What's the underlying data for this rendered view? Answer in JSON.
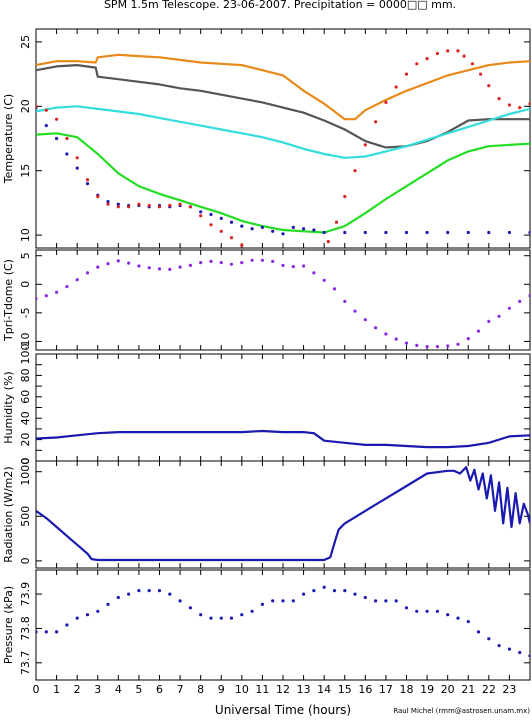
{
  "title": "SPM 1.5m Telescope. 23-06-2007. Precipitation = 0000□□ mm.",
  "xlabel": "Universal Time (hours)",
  "credit": "Raul Michel (rmm@astrosen.unam.mx)",
  "x_tick_labels": [
    "0",
    "1",
    "2",
    "3",
    "4",
    "5",
    "6",
    "7",
    "8",
    "9",
    "10",
    "11",
    "12",
    "13",
    "14",
    "15",
    "16",
    "17",
    "18",
    "19",
    "20",
    "21",
    "22",
    "23"
  ],
  "colors": {
    "orange": "#e8891a",
    "darkgray": "#555555",
    "cyan": "#33dddd",
    "green": "#22dd22",
    "red": "#dd2222",
    "blue": "#1a1ab0",
    "purple": "#8a2be2"
  },
  "chart_data": [
    {
      "type": "scatter",
      "name": "temperature",
      "ylabel": "Temperature (C)",
      "xlim": [
        0,
        24
      ],
      "ylim": [
        9,
        26
      ],
      "y_ticks": [
        10,
        15,
        20,
        25
      ],
      "y_tick_labels": [
        "10",
        "15",
        "20",
        "25"
      ],
      "series": [
        {
          "color": "orange",
          "style": "line",
          "x": [
            0,
            1,
            2,
            2.9,
            3.0,
            4,
            5,
            6,
            7,
            8,
            9,
            10,
            11,
            12,
            13,
            14,
            15,
            15.5,
            16,
            17,
            18,
            19,
            20,
            21,
            22,
            23,
            24
          ],
          "y": [
            23.2,
            23.5,
            23.5,
            23.4,
            23.8,
            24.0,
            23.9,
            23.8,
            23.6,
            23.4,
            23.3,
            23.2,
            22.8,
            22.4,
            21.2,
            20.2,
            19.0,
            19.0,
            19.7,
            20.5,
            21.2,
            21.8,
            22.4,
            22.8,
            23.2,
            23.4,
            23.5
          ]
        },
        {
          "color": "darkgray",
          "style": "line",
          "x": [
            0,
            1,
            2,
            2.9,
            3.0,
            4,
            5,
            6,
            7,
            8,
            9,
            10,
            11,
            12,
            13,
            14,
            15,
            16,
            17,
            18,
            19,
            20,
            21,
            22,
            23,
            24
          ],
          "y": [
            22.8,
            23.1,
            23.2,
            23.0,
            22.3,
            22.1,
            21.9,
            21.7,
            21.4,
            21.2,
            20.9,
            20.6,
            20.3,
            19.9,
            19.5,
            18.9,
            18.2,
            17.3,
            16.8,
            16.9,
            17.3,
            18.0,
            18.9,
            19.0,
            19.0,
            19.0
          ]
        },
        {
          "color": "cyan",
          "style": "line",
          "x": [
            0,
            1,
            2,
            3,
            4,
            5,
            6,
            7,
            8,
            9,
            10,
            11,
            12,
            13,
            14,
            15,
            16,
            17,
            18,
            19,
            20,
            21,
            22,
            23,
            24
          ],
          "y": [
            19.6,
            19.9,
            20.0,
            19.8,
            19.6,
            19.4,
            19.1,
            18.8,
            18.5,
            18.2,
            17.9,
            17.6,
            17.2,
            16.7,
            16.3,
            16.0,
            16.1,
            16.5,
            16.9,
            17.4,
            17.9,
            18.4,
            18.9,
            19.4,
            19.8
          ]
        },
        {
          "color": "green",
          "style": "line",
          "x": [
            0,
            1,
            2,
            3,
            4,
            5,
            6,
            7,
            8,
            9,
            10,
            11,
            12,
            13,
            14,
            15,
            16,
            17,
            18,
            19,
            20,
            21,
            22,
            23,
            24
          ],
          "y": [
            17.8,
            17.9,
            17.6,
            16.3,
            14.8,
            13.8,
            13.2,
            12.7,
            12.2,
            11.7,
            11.1,
            10.7,
            10.4,
            10.3,
            10.2,
            10.7,
            11.7,
            12.8,
            13.8,
            14.8,
            15.8,
            16.5,
            16.9,
            17.0,
            17.1
          ]
        },
        {
          "color": "blue",
          "style": "scatter",
          "x": [
            0,
            0.5,
            1,
            1.5,
            2,
            2.5,
            3,
            3.5,
            4,
            4.5,
            5,
            5.5,
            6,
            6.5,
            7,
            7.5,
            8,
            8.5,
            9,
            9.5,
            10,
            10.5,
            11,
            11.5,
            12,
            12.5,
            13,
            13.5,
            14,
            15,
            16,
            17,
            18,
            19,
            20,
            21,
            22,
            23,
            24
          ],
          "y": [
            19.9,
            18.5,
            17.5,
            16.3,
            15.2,
            14.0,
            13.1,
            12.6,
            12.4,
            12.3,
            12.3,
            12.2,
            12.3,
            12.2,
            12.3,
            12.2,
            11.8,
            11.6,
            11.3,
            11.0,
            10.7,
            10.5,
            10.6,
            10.3,
            10.1,
            10.6,
            10.5,
            10.4,
            10.2,
            10.2,
            10.2,
            10.2,
            10.2,
            10.2,
            10.2,
            10.2,
            10.2,
            10.2,
            10.2
          ]
        },
        {
          "color": "red",
          "style": "scatter",
          "x": [
            0,
            0.5,
            1,
            1.5,
            2,
            2.5,
            3,
            3.5,
            4,
            4.5,
            5,
            5.5,
            6,
            6.5,
            7,
            7.5,
            8,
            8.5,
            9,
            9.5,
            10,
            10.5,
            11,
            11.5,
            12,
            13,
            13.8,
            14.2,
            14.6,
            15,
            15.5,
            16,
            16.5,
            17,
            17.5,
            18,
            18.5,
            19,
            19.5,
            20,
            20.5,
            20.8,
            21.2,
            21.6,
            22,
            22.5,
            23,
            23.5,
            24
          ],
          "y": [
            20.0,
            19.7,
            19.0,
            17.5,
            16.0,
            14.3,
            13.0,
            12.4,
            12.2,
            12.2,
            12.4,
            12.3,
            12.2,
            12.3,
            12.4,
            12.2,
            11.5,
            10.8,
            10.3,
            9.8,
            9.2,
            8.8,
            8.6,
            8.5,
            8.4,
            8.4,
            8.5,
            9.5,
            11.0,
            13.0,
            15.0,
            17.0,
            18.8,
            20.3,
            21.5,
            22.5,
            23.3,
            23.7,
            24.1,
            24.3,
            24.3,
            23.9,
            23.3,
            22.5,
            21.6,
            20.6,
            20.1,
            19.9,
            20.2
          ]
        }
      ]
    },
    {
      "type": "scatter",
      "name": "tpri-tdome",
      "ylabel": "Tpri-Tdome (C)",
      "xlim": [
        0,
        24
      ],
      "ylim": [
        -11.5,
        6
      ],
      "y_ticks": [
        -10,
        -5,
        0,
        5
      ],
      "y_tick_labels": [
        "-10",
        "-5",
        "0",
        "5"
      ],
      "series": [
        {
          "color": "purple",
          "style": "scatter",
          "x": [
            0,
            0.5,
            1,
            1.5,
            2,
            2.5,
            3,
            3.5,
            4,
            4.5,
            5,
            5.5,
            6,
            6.5,
            7,
            7.5,
            8,
            8.5,
            9,
            9.5,
            10,
            10.5,
            11,
            11.5,
            12,
            12.5,
            13,
            13.5,
            14,
            14.5,
            15,
            15.5,
            16,
            16.5,
            17,
            17.5,
            18,
            18.5,
            19,
            19.5,
            20,
            20.5,
            21,
            21.5,
            22,
            22.5,
            23,
            23.5,
            24
          ],
          "y": [
            -2.5,
            -2.0,
            -1.4,
            -0.4,
            0.8,
            2.0,
            3.0,
            3.6,
            4.1,
            3.7,
            3.2,
            2.9,
            2.7,
            2.6,
            3.0,
            3.3,
            3.8,
            4.0,
            3.8,
            3.5,
            3.8,
            4.2,
            4.2,
            4.0,
            3.3,
            3.1,
            3.2,
            2.0,
            0.7,
            -0.8,
            -3.0,
            -4.7,
            -6.2,
            -7.6,
            -8.7,
            -9.6,
            -10.3,
            -10.7,
            -10.9,
            -10.9,
            -10.8,
            -10.5,
            -9.5,
            -8.2,
            -6.5,
            -5.6,
            -4.2,
            -3.0,
            -2.0
          ]
        }
      ]
    },
    {
      "type": "line",
      "name": "humidity",
      "ylabel": "Humidity (%)",
      "xlim": [
        0,
        24
      ],
      "ylim": [
        0,
        100
      ],
      "y_ticks": [
        0,
        10,
        20,
        30,
        40,
        50,
        60,
        70,
        80,
        90,
        100
      ],
      "y_tick_labels": [
        "0",
        "",
        "20",
        "",
        "40",
        "",
        "60",
        "",
        "80",
        "",
        "100"
      ],
      "series": [
        {
          "color": "blue",
          "style": "line",
          "x": [
            0,
            1,
            2,
            3,
            4,
            5,
            6,
            7,
            8,
            9,
            10,
            11,
            12,
            13,
            13.5,
            14,
            15,
            16,
            17,
            18,
            19,
            20,
            21,
            22,
            23,
            24
          ],
          "y": [
            21,
            22,
            24,
            26,
            27,
            27,
            27,
            27,
            27,
            27,
            27,
            28,
            27,
            27,
            26,
            19,
            17,
            15,
            15,
            14,
            13,
            13,
            14,
            17,
            23,
            24
          ]
        }
      ]
    },
    {
      "type": "line",
      "name": "radiation",
      "ylabel": "Radiation (W/m2)",
      "xlim": [
        0,
        24
      ],
      "ylim": [
        -80,
        1120
      ],
      "y_ticks": [
        0,
        500,
        1000
      ],
      "y_tick_labels": [
        "0",
        "500",
        "1000"
      ],
      "series": [
        {
          "color": "blue",
          "style": "line",
          "x": [
            0,
            0.5,
            1,
            1.5,
            2,
            2.5,
            2.7,
            3,
            4,
            5,
            6,
            7,
            8,
            9,
            10,
            11,
            12,
            13,
            14,
            14.3,
            14.5,
            14.7,
            15,
            16,
            17,
            18,
            19,
            20,
            20.3,
            20.6,
            20.9,
            21.1,
            21.3,
            21.5,
            21.7,
            21.9,
            22.1,
            22.3,
            22.5,
            22.7,
            22.9,
            23.1,
            23.3,
            23.5,
            23.7,
            23.9,
            24
          ],
          "y": [
            560,
            480,
            380,
            280,
            180,
            80,
            20,
            10,
            10,
            10,
            10,
            10,
            10,
            10,
            10,
            10,
            10,
            10,
            10,
            40,
            200,
            350,
            420,
            560,
            700,
            840,
            980,
            1010,
            1010,
            980,
            1050,
            900,
            1020,
            800,
            980,
            700,
            960,
            560,
            880,
            420,
            820,
            380,
            760,
            420,
            640,
            520,
            420
          ]
        }
      ]
    },
    {
      "type": "scatter",
      "name": "pressure",
      "ylabel": "Pressure (kPa)",
      "xlim": [
        0,
        24
      ],
      "ylim": [
        73.65,
        73.97
      ],
      "y_ticks": [
        73.7,
        73.8,
        73.9
      ],
      "y_tick_labels": [
        "73.7",
        "73.8",
        "73.9"
      ],
      "series": [
        {
          "color": "blue",
          "style": "scatter",
          "x": [
            0,
            0.5,
            1,
            1.5,
            2,
            2.5,
            3,
            3.5,
            4,
            4.5,
            5,
            5.5,
            6,
            6.5,
            7,
            7.5,
            8,
            8.5,
            9,
            9.5,
            10,
            10.5,
            11,
            11.5,
            12,
            12.5,
            13,
            13.5,
            14,
            14.5,
            15,
            15.5,
            16,
            16.5,
            17,
            17.5,
            18,
            18.5,
            19,
            19.5,
            20,
            20.5,
            21,
            21.5,
            22,
            22.5,
            23,
            23.5,
            24
          ],
          "y": [
            73.79,
            73.79,
            73.79,
            73.81,
            73.83,
            73.84,
            73.85,
            73.87,
            73.89,
            73.9,
            73.91,
            73.91,
            73.91,
            73.9,
            73.88,
            73.86,
            73.84,
            73.83,
            73.83,
            73.83,
            73.84,
            73.85,
            73.87,
            73.88,
            73.88,
            73.88,
            73.9,
            73.91,
            73.92,
            73.91,
            73.91,
            73.9,
            73.89,
            73.88,
            73.88,
            73.88,
            73.86,
            73.85,
            73.85,
            73.85,
            73.84,
            73.83,
            73.82,
            73.79,
            73.77,
            73.75,
            73.74,
            73.73,
            73.72
          ]
        }
      ]
    }
  ]
}
